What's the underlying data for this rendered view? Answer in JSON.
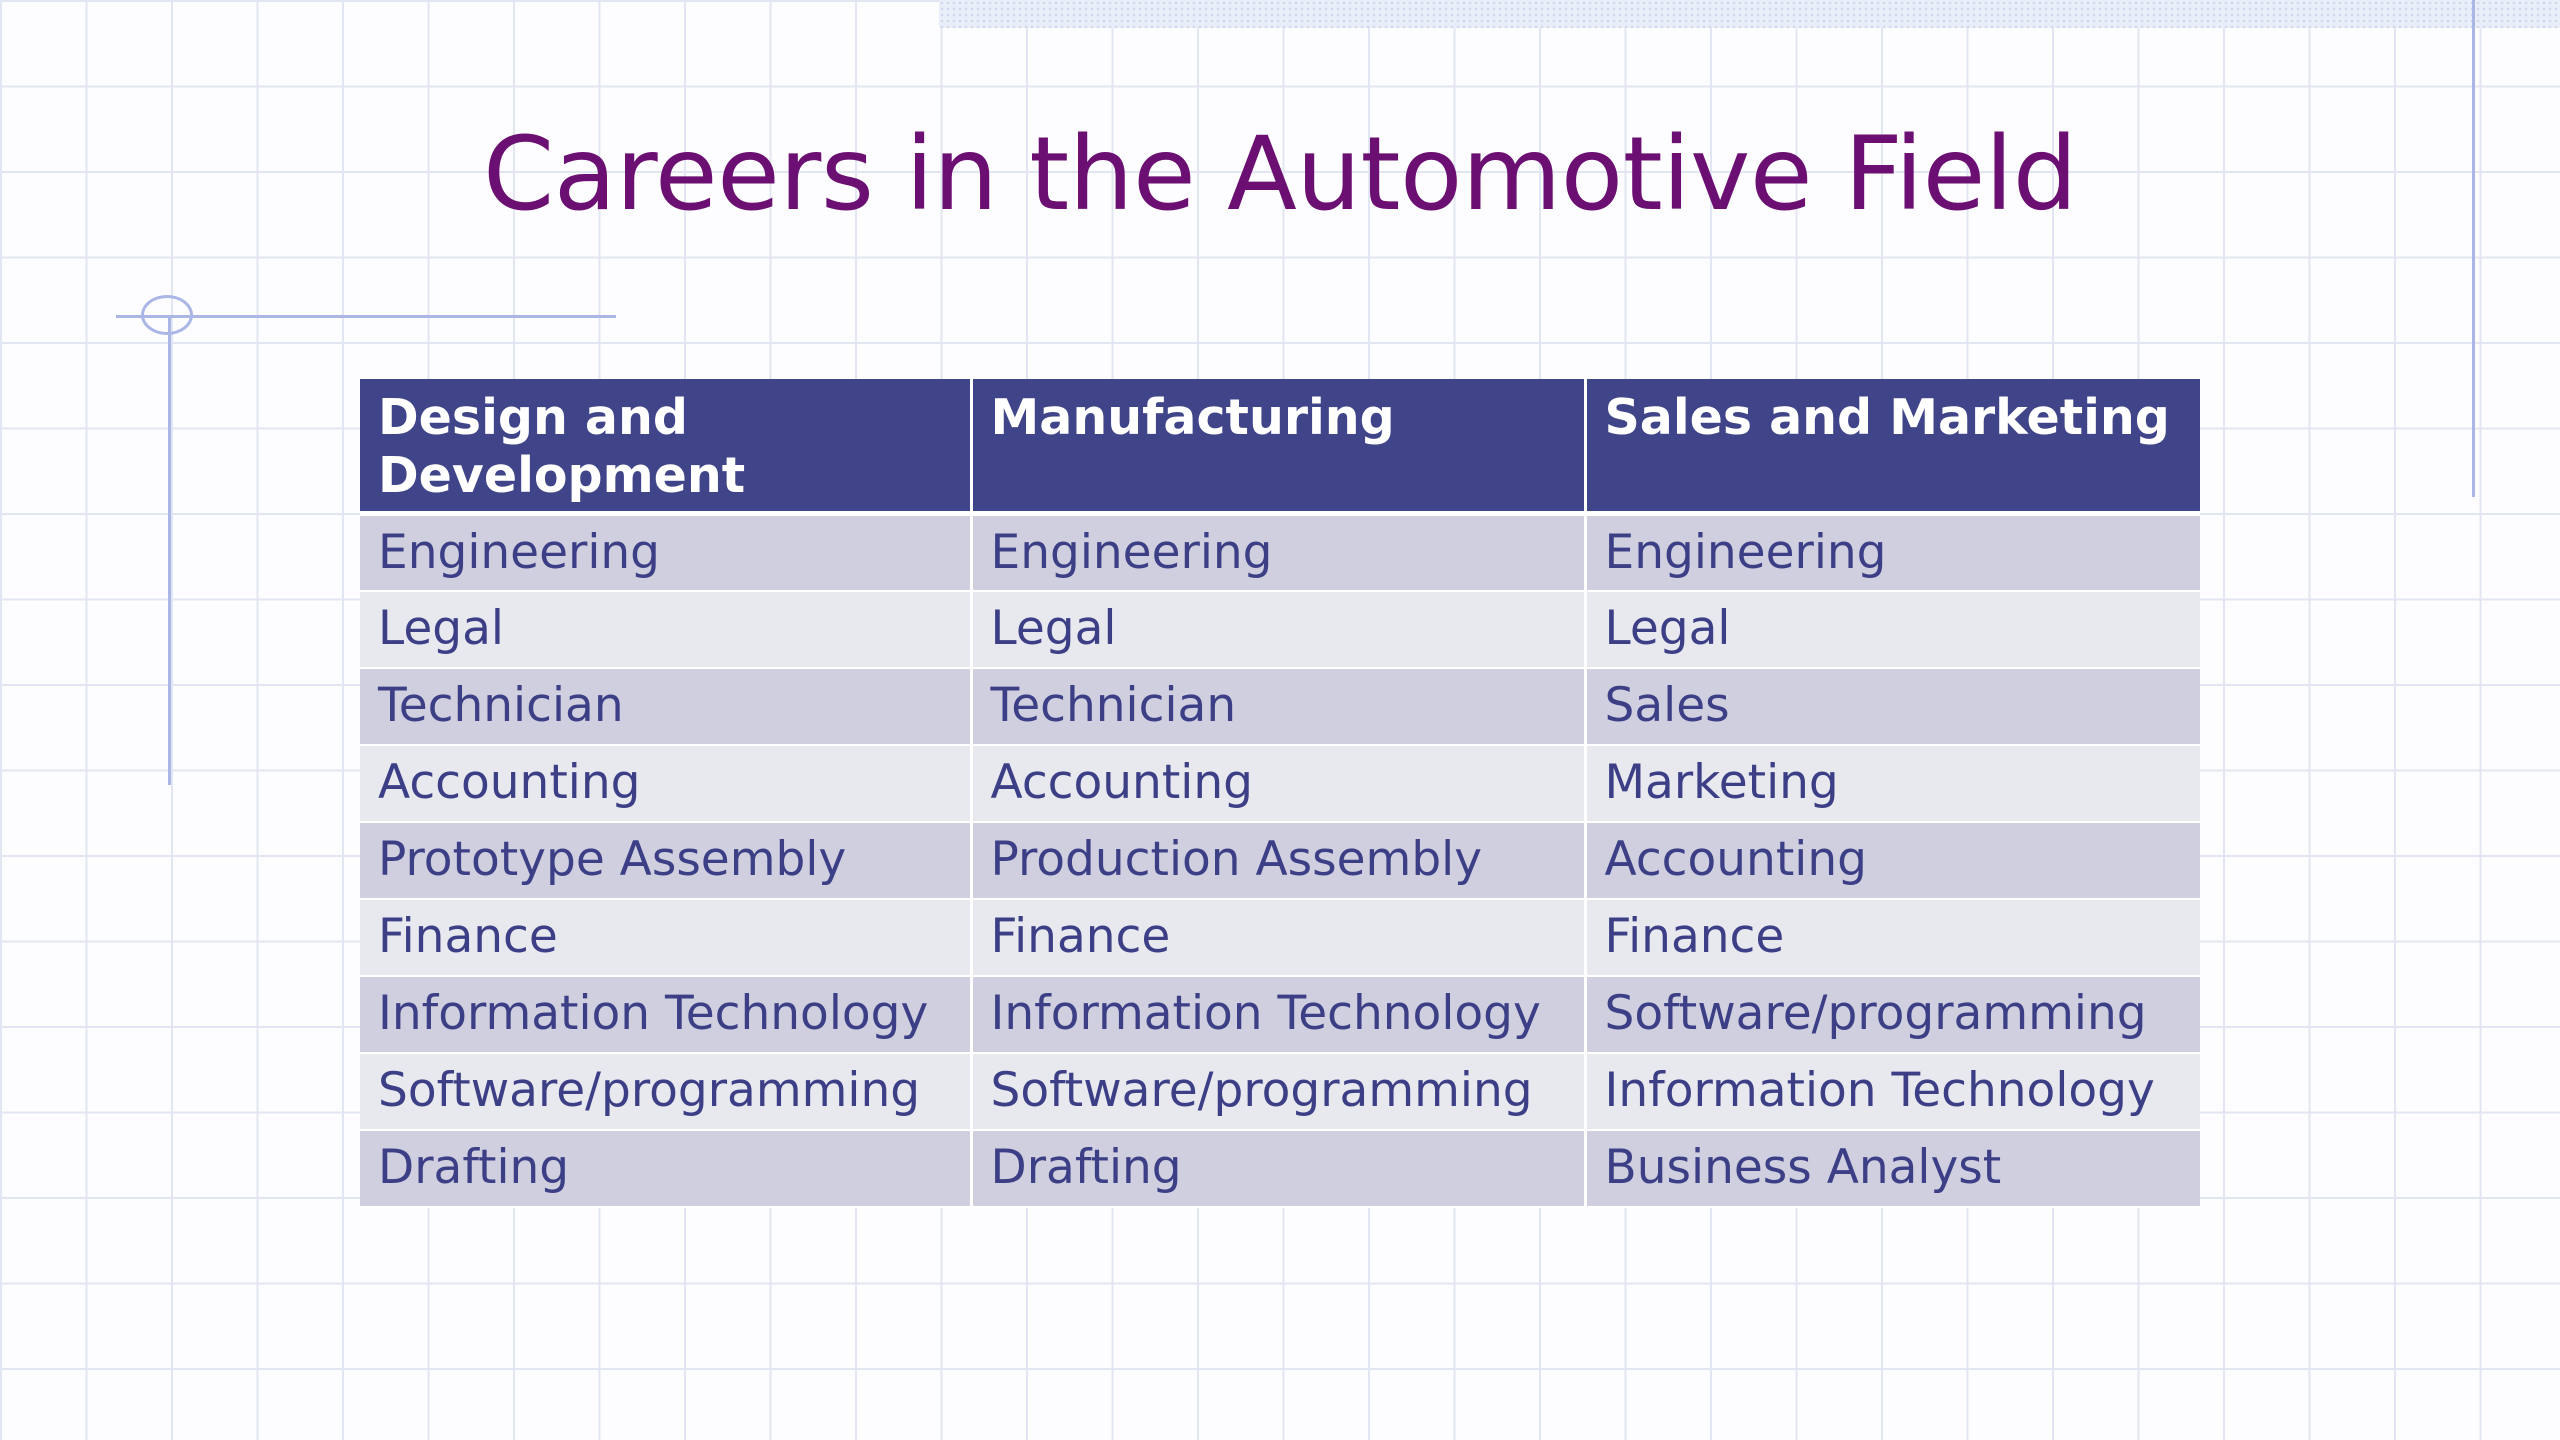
{
  "slide": {
    "title": "Careers in the Automotive Field"
  },
  "table": {
    "headers": [
      "Design and Development",
      "Manufacturing",
      "Sales and Marketing"
    ],
    "rows": [
      [
        "Engineering",
        "Engineering",
        "Engineering"
      ],
      [
        "Legal",
        "Legal",
        "Legal"
      ],
      [
        "Technician",
        "Technician",
        "Sales"
      ],
      [
        "Accounting",
        "Accounting",
        "Marketing"
      ],
      [
        "Prototype Assembly",
        "Production Assembly",
        "Accounting"
      ],
      [
        "Finance",
        "Finance",
        "Finance"
      ],
      [
        "Information Technology",
        "Information Technology",
        "Software/programming"
      ],
      [
        "Software/programming",
        "Software/programming",
        "Information Technology"
      ],
      [
        "Drafting",
        "Drafting",
        "Business Analyst"
      ]
    ]
  },
  "colors": {
    "title": "#6b0f72",
    "header_bg": "#404489",
    "row_odd": "#cfcfdf",
    "row_even": "#e8e8ef",
    "cell_text": "#3c3f86",
    "grid_lines": "#e2e6f2",
    "accent_lines": "#a9b6e6"
  }
}
